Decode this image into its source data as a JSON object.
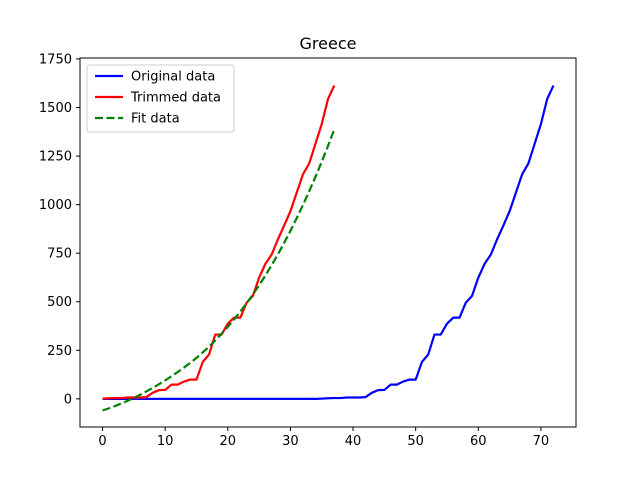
{
  "chart_data": {
    "type": "line",
    "title": "Greece",
    "xlabel": "",
    "ylabel": "",
    "xlim": [
      -3.6,
      75.6
    ],
    "ylim": [
      -145,
      1755
    ],
    "xticks": [
      0,
      10,
      20,
      30,
      40,
      50,
      60,
      70
    ],
    "yticks": [
      0,
      250,
      500,
      750,
      1000,
      1250,
      1500,
      1750
    ],
    "grid": false,
    "legend_position": "top-left",
    "series": [
      {
        "name": "Original data",
        "color": "#0000ff",
        "style": "solid",
        "x": [
          0,
          1,
          2,
          3,
          4,
          5,
          6,
          7,
          8,
          9,
          10,
          11,
          12,
          13,
          14,
          15,
          16,
          17,
          18,
          19,
          20,
          21,
          22,
          23,
          24,
          25,
          26,
          27,
          28,
          29,
          30,
          31,
          32,
          33,
          34,
          35,
          36,
          37,
          38,
          39,
          40,
          41,
          42,
          43,
          44,
          45,
          46,
          47,
          48,
          49,
          50,
          51,
          52,
          53,
          54,
          55,
          56,
          57,
          58,
          59,
          60,
          61,
          62,
          63,
          64,
          65,
          66,
          67,
          68,
          69,
          70,
          71,
          72
        ],
        "y": [
          0,
          0,
          0,
          0,
          0,
          0,
          0,
          0,
          0,
          0,
          0,
          0,
          0,
          0,
          0,
          0,
          0,
          0,
          0,
          0,
          0,
          0,
          0,
          0,
          0,
          0,
          0,
          0,
          0,
          0,
          0,
          0,
          0,
          0,
          0,
          1,
          3,
          4,
          4,
          7,
          7,
          7,
          9,
          31,
          45,
          46,
          73,
          73,
          89,
          99,
          99,
          190,
          228,
          331,
          331,
          387,
          418,
          418,
          495,
          530,
          624,
          695,
          743,
          821,
          892,
          966,
          1061,
          1156,
          1212,
          1314,
          1415,
          1544,
          1613
        ]
      },
      {
        "name": "Trimmed data",
        "color": "#ff0000",
        "style": "solid",
        "x": [
          0,
          1,
          2,
          3,
          4,
          5,
          6,
          7,
          8,
          9,
          10,
          11,
          12,
          13,
          14,
          15,
          16,
          17,
          18,
          19,
          20,
          21,
          22,
          23,
          24,
          25,
          26,
          27,
          28,
          29,
          30,
          31,
          32,
          33,
          34,
          35,
          36,
          37
        ],
        "y": [
          1,
          3,
          4,
          4,
          7,
          7,
          7,
          9,
          31,
          45,
          46,
          73,
          73,
          89,
          99,
          99,
          190,
          228,
          331,
          331,
          387,
          418,
          418,
          495,
          530,
          624,
          695,
          743,
          821,
          892,
          966,
          1061,
          1156,
          1212,
          1314,
          1415,
          1544,
          1613
        ]
      },
      {
        "name": "Fit data",
        "color": "#008000",
        "style": "dashed",
        "x": [
          0,
          1,
          2,
          3,
          4,
          5,
          6,
          7,
          8,
          9,
          10,
          11,
          12,
          13,
          14,
          15,
          16,
          17,
          18,
          19,
          20,
          21,
          22,
          23,
          24,
          25,
          26,
          27,
          28,
          29,
          30,
          31,
          32,
          33,
          34,
          35,
          36,
          37
        ],
        "y": [
          -60,
          -49,
          -37,
          -24,
          -10,
          5,
          21,
          38,
          56,
          75,
          95,
          116,
          138,
          161,
          185,
          211,
          239,
          269,
          301,
          335,
          371,
          409,
          449,
          492,
          537,
          585,
          635,
          688,
          744,
          803,
          865,
          930,
          998,
          1069,
          1143,
          1221,
          1302,
          1387
        ]
      }
    ]
  }
}
